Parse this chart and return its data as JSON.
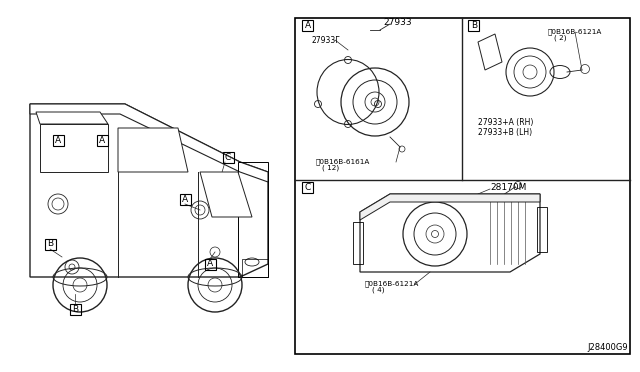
{
  "bg_color": "#ffffff",
  "border_color": "#000000",
  "line_color": "#222222",
  "text_color": "#000000",
  "fig_width": 6.4,
  "fig_height": 3.72,
  "diagram_ref": "J28400G9",
  "part_27933": "27933",
  "part_27933F": "27933Г",
  "part_27933A": "27933+A (RH)",
  "part_27933B": "27933+B (LH)",
  "part_28170M": "28170M",
  "screw_A_line1": "Ⓢ0B16B-6161A",
  "screw_A_line2": "( 12)",
  "screw_B_line1": "Ⓢ0B16B-6121A",
  "screw_B_line2": "( 2)",
  "screw_C_line1": "Ⓢ0B16B-6121A",
  "screw_C_line2": "( 4)",
  "font_size_small": 5.5,
  "font_size_part": 6.5,
  "font_size_label": 7.5,
  "font_size_ref": 6.0
}
